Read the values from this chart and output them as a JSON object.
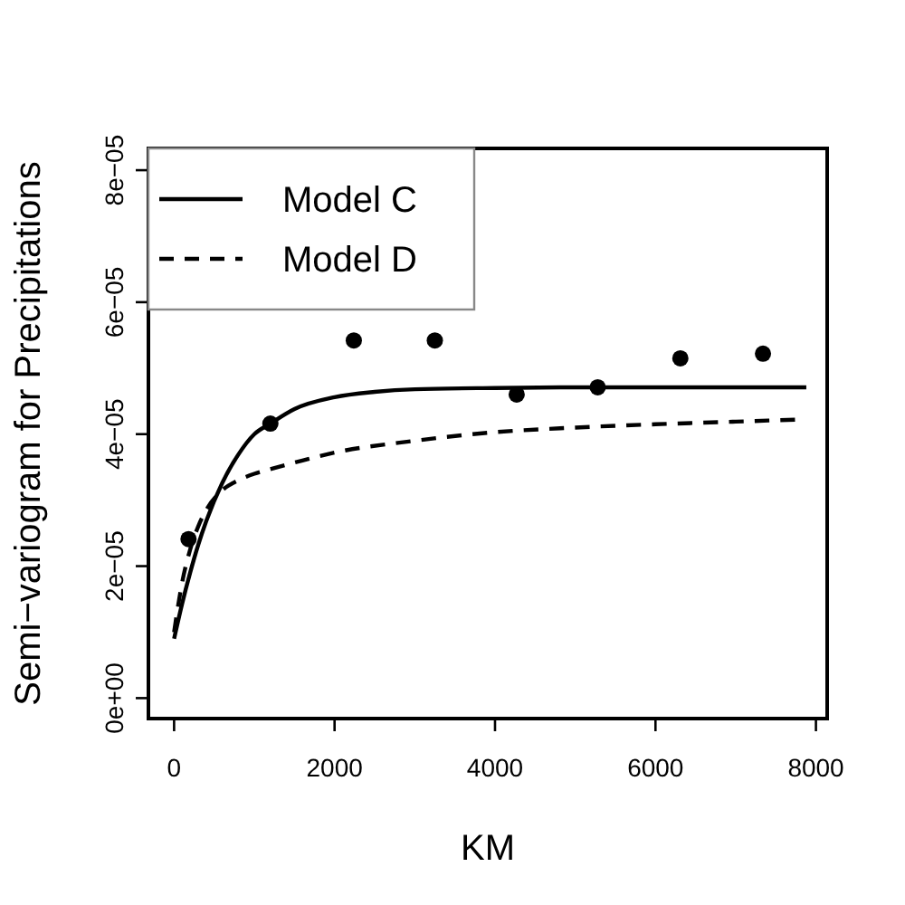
{
  "chart_data": {
    "type": "line",
    "xlabel": "KM",
    "ylabel": "Semi−variogram for Precipitations",
    "xlim": [
      -320,
      8140
    ],
    "ylim": [
      -3.1e-06,
      8.33e-05
    ],
    "xticks": [
      0,
      2000,
      4000,
      6000,
      8000
    ],
    "yticks": [
      {
        "value": 0,
        "label": "0e+00"
      },
      {
        "value": 2e-05,
        "label": "2e−05"
      },
      {
        "value": 4e-05,
        "label": "4e−05"
      },
      {
        "value": 6e-05,
        "label": "6e−05"
      },
      {
        "value": 8e-05,
        "label": "8e−05"
      }
    ],
    "legend": "top left",
    "grid": false,
    "series": [
      {
        "name": "Model C",
        "line_style": "solid",
        "color": "#000000",
        "x": [
          0,
          100,
          200,
          300,
          400,
          600,
          800,
          1000,
          1200,
          1500,
          2000,
          2500,
          3000,
          4000,
          5000,
          7880
        ],
        "values": [
          9e-06,
          1.43e-05,
          1.9e-05,
          2.32e-05,
          2.68e-05,
          3.26e-05,
          3.69e-05,
          4e-05,
          4.16e-05,
          4.38e-05,
          4.56e-05,
          4.64e-05,
          4.68e-05,
          4.7e-05,
          4.71e-05,
          4.71e-05
        ]
      },
      {
        "name": "Model D",
        "line_style": "dashed",
        "color": "#000000",
        "x": [
          0,
          50,
          100,
          200,
          300,
          400,
          600,
          800,
          1000,
          1200,
          1600,
          2000,
          3000,
          4000,
          5000,
          6000,
          7000,
          7740
        ],
        "values": [
          1e-05,
          1.4e-05,
          1.75e-05,
          2.25e-05,
          2.6e-05,
          2.85e-05,
          3.15e-05,
          3.3e-05,
          3.4e-05,
          3.47e-05,
          3.6e-05,
          3.72e-05,
          3.9e-05,
          4.03e-05,
          4.1e-05,
          4.15e-05,
          4.19e-05,
          4.22e-05
        ]
      },
      {
        "type": "scatter",
        "marker": "circle",
        "color": "#000000",
        "x": [
          180,
          1200,
          2240,
          3250,
          4270,
          5280,
          6310,
          7340
        ],
        "values": [
          2.41e-05,
          4.16e-05,
          5.42e-05,
          5.42e-05,
          4.6e-05,
          4.71e-05,
          5.15e-05,
          5.22e-05
        ]
      }
    ]
  }
}
